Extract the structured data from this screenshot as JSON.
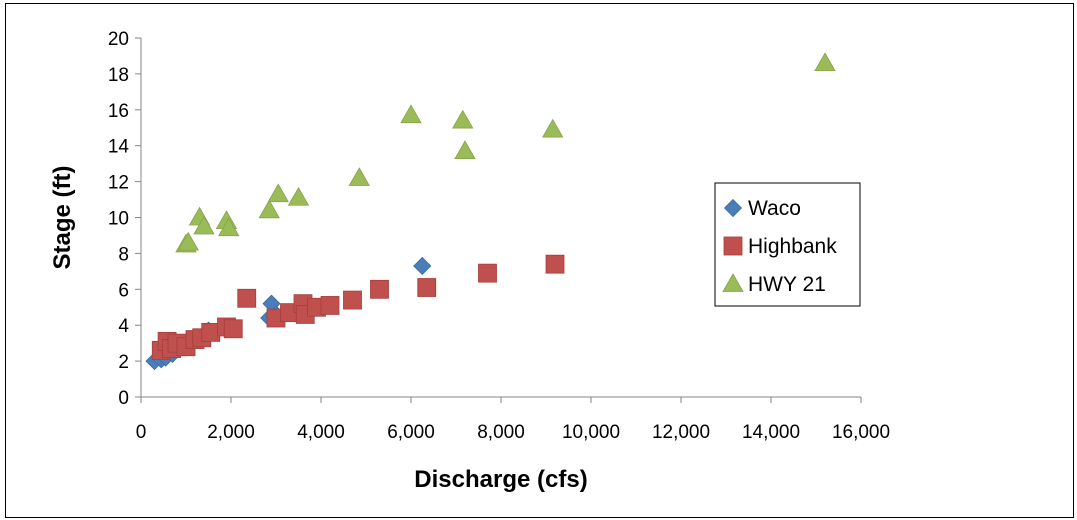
{
  "chart_data": {
    "type": "scatter",
    "title": "",
    "xlabel": "Discharge (cfs)",
    "ylabel": "Stage (ft)",
    "xlim": [
      0,
      16000
    ],
    "ylim": [
      0,
      20
    ],
    "x_ticks": [
      0,
      2000,
      4000,
      6000,
      8000,
      10000,
      12000,
      14000,
      16000
    ],
    "x_tick_labels": [
      "0",
      "2,000",
      "4,000",
      "6,000",
      "8,000",
      "10,000",
      "12,000",
      "14,000",
      "16,000"
    ],
    "y_ticks": [
      0,
      2,
      4,
      6,
      8,
      10,
      12,
      14,
      16,
      18,
      20
    ],
    "y_tick_labels": [
      "0",
      "2",
      "4",
      "6",
      "8",
      "10",
      "12",
      "14",
      "16",
      "18",
      "20"
    ],
    "grid": false,
    "legend_position": "right",
    "series": [
      {
        "name": "Waco",
        "marker": "diamond",
        "color": "#4a7ebb",
        "points": [
          [
            300,
            2.0
          ],
          [
            450,
            2.1
          ],
          [
            550,
            2.2
          ],
          [
            700,
            2.4
          ],
          [
            1000,
            2.9
          ],
          [
            1500,
            3.7
          ],
          [
            2850,
            4.4
          ],
          [
            2900,
            5.2
          ],
          [
            3000,
            4.6
          ],
          [
            3600,
            4.7
          ],
          [
            6250,
            7.3
          ]
        ]
      },
      {
        "name": "Highbank",
        "marker": "square",
        "color": "#c0504d",
        "points": [
          [
            450,
            2.6
          ],
          [
            580,
            3.1
          ],
          [
            680,
            2.7
          ],
          [
            800,
            3.0
          ],
          [
            1000,
            2.8
          ],
          [
            1200,
            3.2
          ],
          [
            1350,
            3.3
          ],
          [
            1550,
            3.6
          ],
          [
            1900,
            3.9
          ],
          [
            2050,
            3.8
          ],
          [
            2350,
            5.5
          ],
          [
            3000,
            4.4
          ],
          [
            3300,
            4.7
          ],
          [
            3600,
            5.2
          ],
          [
            3650,
            4.6
          ],
          [
            3900,
            5.0
          ],
          [
            4200,
            5.1
          ],
          [
            4700,
            5.4
          ],
          [
            5300,
            6.0
          ],
          [
            6350,
            6.1
          ],
          [
            7700,
            6.9
          ],
          [
            9200,
            7.4
          ]
        ]
      },
      {
        "name": "HWY 21",
        "marker": "triangle",
        "color": "#9bbb59",
        "points": [
          [
            1000,
            8.5
          ],
          [
            1050,
            8.6
          ],
          [
            1300,
            10.0
          ],
          [
            1400,
            9.5
          ],
          [
            1900,
            9.8
          ],
          [
            1950,
            9.4
          ],
          [
            2850,
            10.4
          ],
          [
            3050,
            11.3
          ],
          [
            3500,
            11.1
          ],
          [
            4850,
            12.2
          ],
          [
            6000,
            15.7
          ],
          [
            7150,
            15.4
          ],
          [
            7200,
            13.7
          ],
          [
            9150,
            14.9
          ],
          [
            15200,
            18.6
          ]
        ]
      }
    ]
  }
}
